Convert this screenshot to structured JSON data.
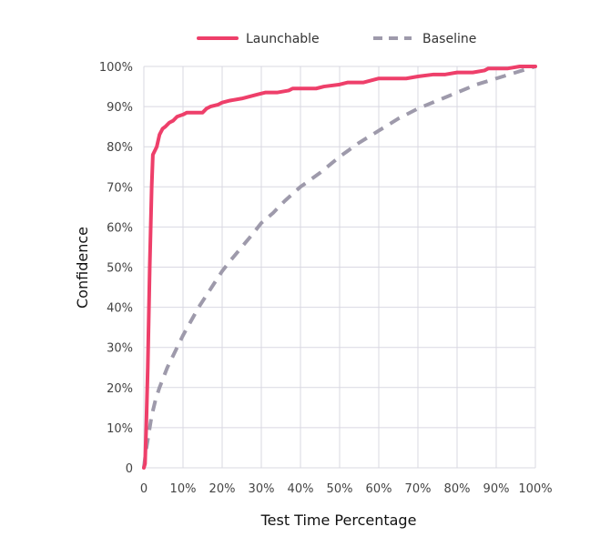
{
  "chart_data": {
    "type": "line",
    "title": "",
    "xlabel": "Test Time Percentage",
    "ylabel": "Confidence",
    "xlim": [
      0,
      100
    ],
    "ylim": [
      0,
      100
    ],
    "grid": true,
    "legend_position": "top-center",
    "x_ticks": [
      "0",
      "10%",
      "20%",
      "30%",
      "40%",
      "50%",
      "60%",
      "70%",
      "80%",
      "90%",
      "100%"
    ],
    "y_ticks": [
      "0",
      "10%",
      "20%",
      "30%",
      "40%",
      "50%",
      "60%",
      "70%",
      "80%",
      "90%",
      "100%"
    ],
    "series": [
      {
        "name": "Launchable",
        "color": "#ee3f6a",
        "style": "solid",
        "points": [
          [
            0,
            0
          ],
          [
            0.3,
            1
          ],
          [
            0.6,
            10
          ],
          [
            1,
            25
          ],
          [
            1.5,
            50
          ],
          [
            2,
            70
          ],
          [
            2.3,
            78
          ],
          [
            2.8,
            79
          ],
          [
            3.3,
            80
          ],
          [
            4,
            83
          ],
          [
            4.8,
            84.5
          ],
          [
            5.5,
            85
          ],
          [
            6.5,
            86
          ],
          [
            7.5,
            86.5
          ],
          [
            8.5,
            87.5
          ],
          [
            10,
            88
          ],
          [
            11,
            88.5
          ],
          [
            12,
            88.5
          ],
          [
            13,
            88.5
          ],
          [
            15,
            88.5
          ],
          [
            16,
            89.5
          ],
          [
            17,
            90
          ],
          [
            19,
            90.5
          ],
          [
            20,
            91
          ],
          [
            22,
            91.5
          ],
          [
            25,
            92
          ],
          [
            27,
            92.5
          ],
          [
            29,
            93
          ],
          [
            31,
            93.5
          ],
          [
            34,
            93.5
          ],
          [
            37,
            94
          ],
          [
            38,
            94.5
          ],
          [
            40,
            94.5
          ],
          [
            44,
            94.5
          ],
          [
            46,
            95
          ],
          [
            50,
            95.5
          ],
          [
            52,
            96
          ],
          [
            56,
            96
          ],
          [
            58,
            96.5
          ],
          [
            60,
            97
          ],
          [
            63,
            97
          ],
          [
            67,
            97
          ],
          [
            70,
            97.5
          ],
          [
            74,
            98
          ],
          [
            77,
            98
          ],
          [
            80,
            98.5
          ],
          [
            84,
            98.5
          ],
          [
            87,
            99
          ],
          [
            88,
            99.5
          ],
          [
            93,
            99.5
          ],
          [
            96,
            100
          ],
          [
            100,
            100
          ]
        ]
      },
      {
        "name": "Baseline",
        "color": "#9e9aab",
        "style": "dashed",
        "points": [
          [
            0,
            0
          ],
          [
            0.5,
            4
          ],
          [
            1,
            7
          ],
          [
            1.5,
            10
          ],
          [
            2,
            13
          ],
          [
            3,
            17
          ],
          [
            4,
            20
          ],
          [
            5,
            22.5
          ],
          [
            6,
            25
          ],
          [
            7,
            27
          ],
          [
            8,
            29
          ],
          [
            10,
            33
          ],
          [
            12,
            36.5
          ],
          [
            14,
            40
          ],
          [
            16,
            43
          ],
          [
            18,
            46
          ],
          [
            20,
            49
          ],
          [
            22,
            51.5
          ],
          [
            25,
            55
          ],
          [
            28,
            58.5
          ],
          [
            30,
            61
          ],
          [
            33,
            63.5
          ],
          [
            36,
            66.5
          ],
          [
            40,
            70
          ],
          [
            45,
            73.5
          ],
          [
            50,
            77.5
          ],
          [
            55,
            81
          ],
          [
            60,
            84
          ],
          [
            65,
            87
          ],
          [
            70,
            89.5
          ],
          [
            75,
            91.5
          ],
          [
            80,
            93.5
          ],
          [
            85,
            95.5
          ],
          [
            90,
            97
          ],
          [
            95,
            98.5
          ],
          [
            100,
            100
          ]
        ]
      }
    ]
  }
}
